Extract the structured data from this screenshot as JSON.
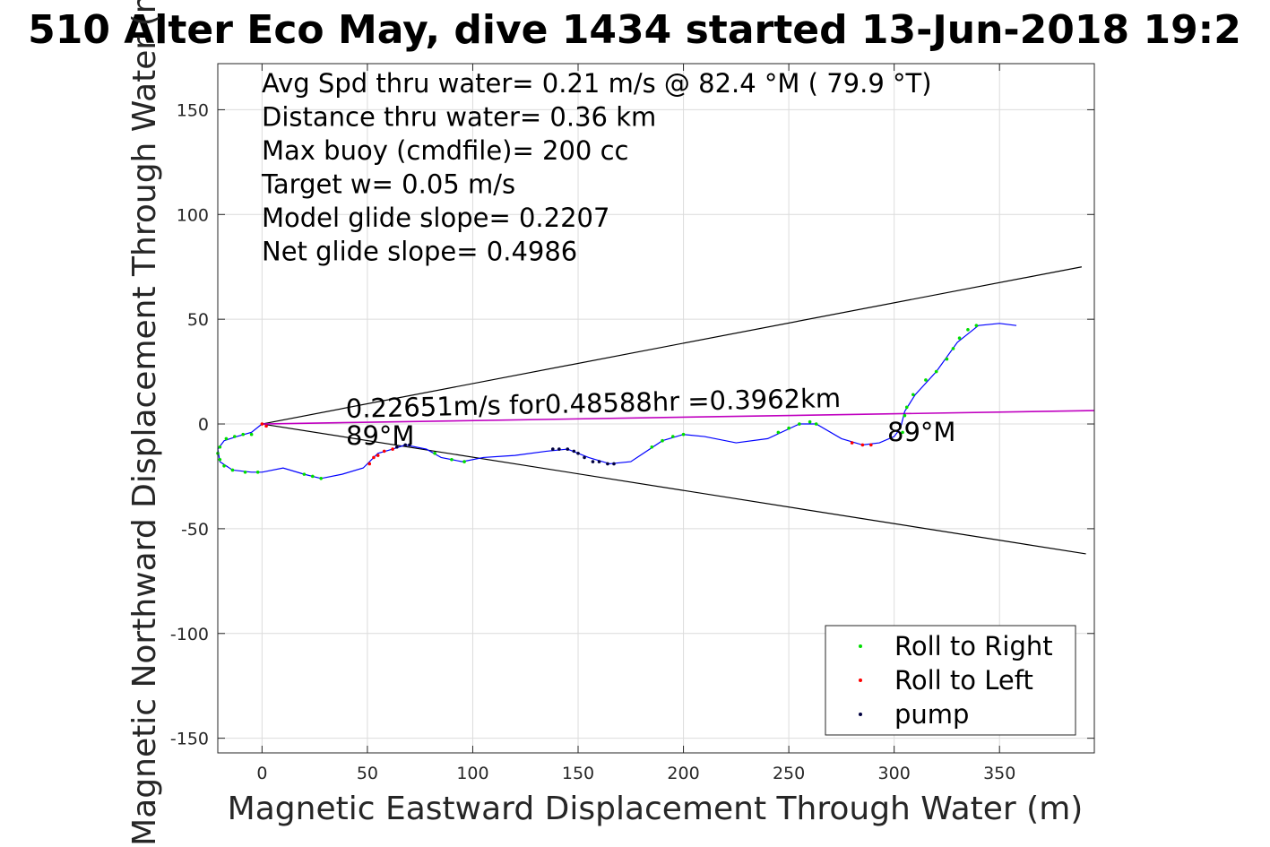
{
  "chart_data": {
    "type": "scatter",
    "title": "510 Alter Eco May, dive 1434 started 13-Jun-2018 19:2",
    "xlabel": "Magnetic Eastward Displacement Through Water (m)",
    "ylabel": "Magnetic Northward Displacement Through Water (m)",
    "xlim": [
      -21,
      395
    ],
    "ylim": [
      -157,
      172
    ],
    "xticks": [
      0,
      50,
      100,
      150,
      200,
      250,
      300,
      350
    ],
    "yticks": [
      -150,
      -100,
      -50,
      0,
      50,
      100,
      150
    ],
    "xtick_labels": [
      "0",
      "50",
      "100",
      "150",
      "200",
      "250",
      "300",
      "350"
    ],
    "ytick_labels": [
      "-150",
      "-100",
      "-50",
      "0",
      "50",
      "100",
      "150"
    ],
    "grid": true,
    "legend_position": "bottom-right",
    "summary_lines": [
      "Avg Spd thru water=  0.21 m/s @  82.4 °M ( 79.9 °T)",
      "Distance thru water=  0.36 km",
      "Max buoy (cmdfile)= 200 cc",
      "Target w= 0.05 m/s",
      "Model glide slope= 0.2207",
      "Net glide slope= 0.4986"
    ],
    "annotations": {
      "current": "0.22651m/s for0.48588hr =0.3962km",
      "heading_left": "89°M",
      "heading_right": "89°M"
    },
    "series": [
      {
        "name": "Roll to Right",
        "color": "#00dd00",
        "points": [
          [
            -17,
            -7
          ],
          [
            -13,
            -6
          ],
          [
            -9,
            -5
          ],
          [
            -5,
            -5
          ],
          [
            -20,
            -11
          ],
          [
            -21,
            -14
          ],
          [
            -20,
            -17
          ],
          [
            -18,
            -20
          ],
          [
            -14,
            -22
          ],
          [
            -8,
            -23
          ],
          [
            -2,
            -23
          ],
          [
            20,
            -24
          ],
          [
            24,
            -25
          ],
          [
            28,
            -26
          ],
          [
            82,
            -14
          ],
          [
            90,
            -17
          ],
          [
            96,
            -18
          ],
          [
            185,
            -11
          ],
          [
            190,
            -8
          ],
          [
            195,
            -6
          ],
          [
            200,
            -5
          ],
          [
            245,
            -4
          ],
          [
            250,
            -2
          ],
          [
            255,
            0
          ],
          [
            260,
            1
          ],
          [
            263,
            0
          ],
          [
            304,
            -4
          ],
          [
            305,
            4
          ],
          [
            306,
            8
          ],
          [
            309,
            14
          ],
          [
            315,
            21
          ],
          [
            320,
            25
          ],
          [
            325,
            31
          ],
          [
            328,
            36
          ],
          [
            331,
            41
          ],
          [
            335,
            45
          ],
          [
            339,
            47
          ]
        ]
      },
      {
        "name": "Roll to Left",
        "color": "#ff0000",
        "points": [
          [
            0,
            0
          ],
          [
            2,
            -1
          ],
          [
            51,
            -19
          ],
          [
            53,
            -16
          ],
          [
            55,
            -15
          ],
          [
            58,
            -13
          ],
          [
            62,
            -12
          ],
          [
            280,
            -9
          ],
          [
            285,
            -10
          ],
          [
            289,
            -10
          ]
        ]
      },
      {
        "name": "pump",
        "color": "#000040",
        "points": [
          [
            64,
            -11
          ],
          [
            68,
            -10
          ],
          [
            70,
            -10
          ],
          [
            138,
            -12
          ],
          [
            141,
            -12
          ],
          [
            145,
            -12
          ],
          [
            148,
            -13
          ],
          [
            150,
            -14
          ],
          [
            153,
            -16
          ],
          [
            157,
            -18
          ],
          [
            160,
            -18
          ],
          [
            164,
            -19
          ],
          [
            167,
            -19
          ]
        ]
      }
    ],
    "track": {
      "color": "#0000ff",
      "points": [
        [
          0,
          0
        ],
        [
          -5,
          -4
        ],
        [
          -12,
          -6
        ],
        [
          -18,
          -8
        ],
        [
          -21,
          -12
        ],
        [
          -20,
          -18
        ],
        [
          -14,
          -22
        ],
        [
          -5,
          -23
        ],
        [
          0,
          -23
        ],
        [
          10,
          -21
        ],
        [
          20,
          -24
        ],
        [
          28,
          -26
        ],
        [
          38,
          -24
        ],
        [
          48,
          -21
        ],
        [
          55,
          -14
        ],
        [
          62,
          -12
        ],
        [
          68,
          -10
        ],
        [
          78,
          -12
        ],
        [
          85,
          -16
        ],
        [
          95,
          -18
        ],
        [
          105,
          -16
        ],
        [
          120,
          -15
        ],
        [
          135,
          -13
        ],
        [
          145,
          -12
        ],
        [
          155,
          -16
        ],
        [
          165,
          -19
        ],
        [
          175,
          -18
        ],
        [
          190,
          -8
        ],
        [
          200,
          -5
        ],
        [
          210,
          -6
        ],
        [
          225,
          -9
        ],
        [
          240,
          -7
        ],
        [
          255,
          0
        ],
        [
          263,
          0
        ],
        [
          275,
          -7
        ],
        [
          285,
          -10
        ],
        [
          293,
          -9
        ],
        [
          300,
          -6
        ],
        [
          303,
          -2
        ],
        [
          305,
          6
        ],
        [
          310,
          14
        ],
        [
          320,
          25
        ],
        [
          330,
          39
        ],
        [
          340,
          47
        ],
        [
          350,
          48
        ],
        [
          358,
          47
        ]
      ]
    },
    "current_vector": {
      "from": [
        0,
        0
      ],
      "to": [
        395,
        6.4
      ],
      "color": "#c000c0"
    },
    "envelope_lines": [
      {
        "from": [
          0,
          0
        ],
        "to": [
          389,
          75
        ],
        "color": "#000000"
      },
      {
        "from": [
          0,
          0
        ],
        "to": [
          391,
          -62
        ],
        "color": "#000000"
      }
    ]
  }
}
